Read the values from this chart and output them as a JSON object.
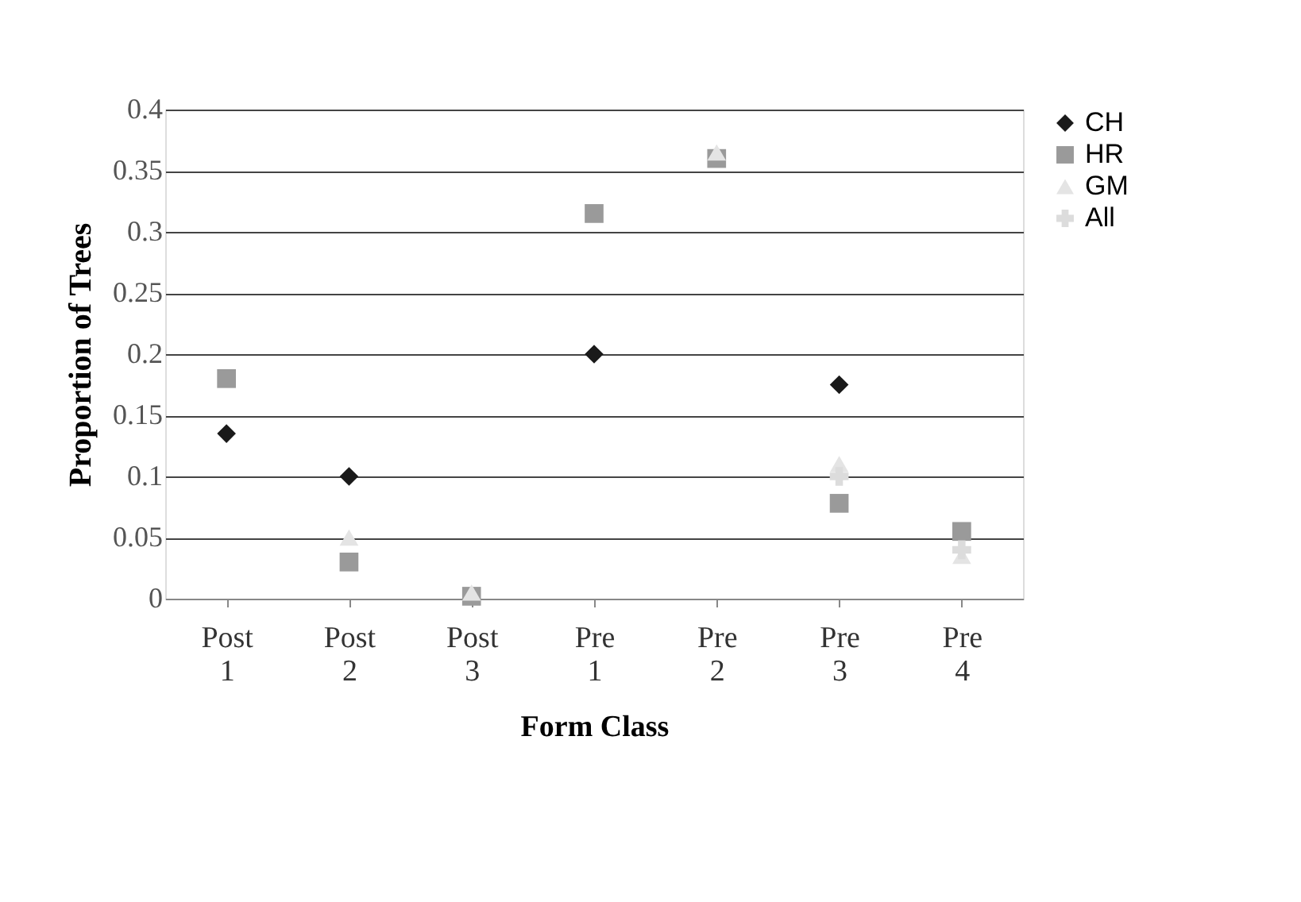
{
  "chart_data": {
    "type": "scatter",
    "xlabel": "Form Class",
    "ylabel": "Proportion of Trees",
    "categories": [
      "Post 1",
      "Post 2",
      "Post 3",
      "Pre 1",
      "Pre 2",
      "Pre 3",
      "Pre 4"
    ],
    "series": [
      {
        "name": "CH",
        "color": "#1a1a1a",
        "marker": "diamond",
        "values": [
          0.135,
          0.1,
          null,
          0.2,
          null,
          0.175,
          null
        ]
      },
      {
        "name": "HR",
        "color": "#9a9a9a",
        "marker": "square",
        "values": [
          0.18,
          0.03,
          0.002,
          0.315,
          0.36,
          0.078,
          0.055
        ]
      },
      {
        "name": "GM",
        "color": "#e4e4e4",
        "marker": "triangle",
        "values": [
          null,
          0.05,
          0.005,
          null,
          0.365,
          0.11,
          0.035
        ]
      },
      {
        "name": "All",
        "color": "#dcdcdc",
        "marker": "cross",
        "values": [
          null,
          null,
          null,
          null,
          null,
          0.1,
          0.04
        ]
      }
    ],
    "ylim": [
      0,
      0.4
    ],
    "yticks": [
      0,
      0.05,
      0.1,
      0.15,
      0.2,
      0.25,
      0.3,
      0.35,
      0.4
    ],
    "grid": "y",
    "legend": "right"
  }
}
